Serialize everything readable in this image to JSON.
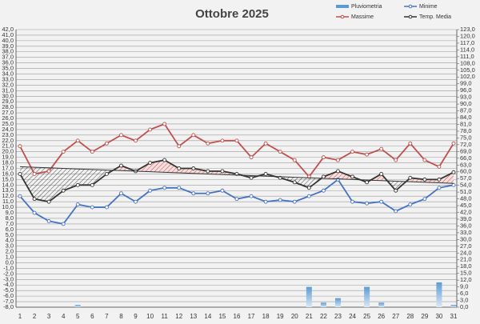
{
  "chart_data": {
    "type": "line",
    "title": "Ottobre 2025",
    "categories": [
      "1",
      "2",
      "3",
      "4",
      "5",
      "6",
      "7",
      "8",
      "9",
      "10",
      "11",
      "12",
      "13",
      "14",
      "15",
      "16",
      "17",
      "18",
      "19",
      "20",
      "21",
      "22",
      "23",
      "24",
      "25",
      "26",
      "27",
      "28",
      "29",
      "30",
      "31"
    ],
    "series": [
      {
        "name": "Pluviometria",
        "type": "bar",
        "axis": "y2",
        "color": "#5b9bd5",
        "values": [
          0,
          0,
          0,
          0,
          1,
          0,
          0,
          0,
          0,
          0,
          0,
          0,
          0,
          0,
          0,
          0,
          0,
          0,
          0,
          0,
          9,
          2,
          4,
          0,
          9,
          2,
          0,
          0,
          0,
          11,
          1
        ]
      },
      {
        "name": "Minime",
        "color": "#4472c4",
        "values": [
          12,
          9,
          7.5,
          7,
          10.5,
          10,
          10,
          12.5,
          11,
          13,
          13.5,
          13.5,
          12.5,
          12.5,
          13,
          11.5,
          12,
          11,
          11.3,
          11,
          12,
          13,
          15,
          11,
          10.7,
          11,
          9.3,
          10.5,
          11.5,
          13.5,
          14
        ]
      },
      {
        "name": "Massime",
        "color": "#c0504d",
        "values": [
          21,
          16,
          16.5,
          20,
          22,
          20,
          21.5,
          23,
          22,
          24,
          25,
          21,
          23,
          21.5,
          22,
          22,
          19,
          21.5,
          20,
          18.5,
          15.5,
          19,
          18.5,
          20,
          19.5,
          20.5,
          18.5,
          21.5,
          18.5,
          17.3,
          21.5
        ]
      },
      {
        "name": "Temp. Media",
        "color": "#333333",
        "values": [
          16,
          11.5,
          11,
          13,
          14,
          14,
          16,
          17.5,
          16.5,
          18,
          18.5,
          17,
          17,
          16.5,
          16.5,
          16,
          15.3,
          16,
          15.3,
          14.5,
          13.5,
          15.5,
          16.5,
          15.5,
          14.5,
          16,
          13,
          15.3,
          15,
          15,
          16.3
        ]
      },
      {
        "color": "#333333",
        "values": [
          17.3,
          17.2,
          17.1,
          17,
          16.9,
          16.8,
          16.7,
          16.6,
          16.5,
          16.4,
          16.3,
          16.2,
          16.1,
          16,
          15.9,
          15.8,
          15.7,
          15.6,
          15.5,
          15.4,
          15.3,
          15.2,
          15.1,
          15,
          14.9,
          14.8,
          14.7,
          14.6,
          14.5,
          14.4,
          14.3
        ]
      }
    ],
    "ylim": [
      -8,
      42
    ],
    "yticks": [
      {
        "value": 42,
        "label": "42,0"
      },
      {
        "value": 41,
        "label": "41,0"
      },
      {
        "value": 40,
        "label": "40,0"
      },
      {
        "value": 39,
        "label": "39,0"
      },
      {
        "value": 38,
        "label": "38,0"
      },
      {
        "value": 37,
        "label": "37,0"
      },
      {
        "value": 36,
        "label": "36,0"
      },
      {
        "value": 35,
        "label": "35,0"
      },
      {
        "value": 34,
        "label": "34,0"
      },
      {
        "value": 33,
        "label": "33,0"
      },
      {
        "value": 32,
        "label": "32,0"
      },
      {
        "value": 31,
        "label": "31,0"
      },
      {
        "value": 30,
        "label": "30,0"
      },
      {
        "value": 29,
        "label": "29,0"
      },
      {
        "value": 28,
        "label": "28,0"
      },
      {
        "value": 27,
        "label": "27,0"
      },
      {
        "value": 26,
        "label": "26,0"
      },
      {
        "value": 25,
        "label": "25,0"
      },
      {
        "value": 24,
        "label": "24,0"
      },
      {
        "value": 23,
        "label": "23,0"
      },
      {
        "value": 22,
        "label": "22,0"
      },
      {
        "value": 21,
        "label": "21,0"
      },
      {
        "value": 20,
        "label": "20,0"
      },
      {
        "value": 19,
        "label": "19,0"
      },
      {
        "value": 18,
        "label": "18,0"
      },
      {
        "value": 17,
        "label": "17,0"
      },
      {
        "value": 16,
        "label": "16,0"
      },
      {
        "value": 15,
        "label": "15,0"
      },
      {
        "value": 14,
        "label": "14,0"
      },
      {
        "value": 13,
        "label": "13,0"
      },
      {
        "value": 12,
        "label": "12,0"
      },
      {
        "value": 11,
        "label": "11,0"
      },
      {
        "value": 10,
        "label": "10,0"
      },
      {
        "value": 9,
        "label": "9,0"
      },
      {
        "value": 8,
        "label": "8,0"
      },
      {
        "value": 7,
        "label": "7,0"
      },
      {
        "value": 6,
        "label": "6,0"
      },
      {
        "value": 5,
        "label": "5,0"
      },
      {
        "value": 4,
        "label": "4,0"
      },
      {
        "value": 3,
        "label": "3,0"
      },
      {
        "value": 2,
        "label": "2,0"
      },
      {
        "value": 1,
        "label": "1,0"
      },
      {
        "value": 0,
        "label": "0,0"
      },
      {
        "value": -1,
        "label": "-1,0"
      },
      {
        "value": -2,
        "label": "-2,0"
      },
      {
        "value": -3,
        "label": "-3,0"
      },
      {
        "value": -4,
        "label": "-4,0"
      },
      {
        "value": -5,
        "label": "-5,0"
      },
      {
        "value": -6,
        "label": "-6,0"
      },
      {
        "value": -7,
        "label": "-7,0"
      },
      {
        "value": -8,
        "label": "-8,0"
      }
    ],
    "y2lim": [
      0,
      123
    ],
    "y2ticks": [
      {
        "value": 123,
        "label": "123,0"
      },
      {
        "value": 120,
        "label": "120,0"
      },
      {
        "value": 117,
        "label": "117,0"
      },
      {
        "value": 114,
        "label": "114,0"
      },
      {
        "value": 111,
        "label": "111,0"
      },
      {
        "value": 108,
        "label": "108,0"
      },
      {
        "value": 105,
        "label": "105,0"
      },
      {
        "value": 102,
        "label": "102,0"
      },
      {
        "value": 99,
        "label": "99,0"
      },
      {
        "value": 96,
        "label": "96,0"
      },
      {
        "value": 93,
        "label": "93,0"
      },
      {
        "value": 90,
        "label": "90,0"
      },
      {
        "value": 87,
        "label": "87,0"
      },
      {
        "value": 84,
        "label": "84,0"
      },
      {
        "value": 81,
        "label": "81,0"
      },
      {
        "value": 78,
        "label": "78,0"
      },
      {
        "value": 75,
        "label": "75,0"
      },
      {
        "value": 72,
        "label": "72,0"
      },
      {
        "value": 69,
        "label": "69,0"
      },
      {
        "value": 66,
        "label": "66,0"
      },
      {
        "value": 63,
        "label": "63,0"
      },
      {
        "value": 60,
        "label": "60,0"
      },
      {
        "value": 57,
        "label": "57,0"
      },
      {
        "value": 54,
        "label": "54,0"
      },
      {
        "value": 51,
        "label": "51,0"
      },
      {
        "value": 48,
        "label": "48,0"
      },
      {
        "value": 45,
        "label": "45,0"
      },
      {
        "value": 42,
        "label": "42,0"
      },
      {
        "value": 39,
        "label": "39,0"
      },
      {
        "value": 36,
        "label": "36,0"
      },
      {
        "value": 33,
        "label": "33,0"
      },
      {
        "value": 30,
        "label": "30,0"
      },
      {
        "value": 27,
        "label": "27,0"
      },
      {
        "value": 24,
        "label": "24,0"
      },
      {
        "value": 21,
        "label": "21,0"
      },
      {
        "value": 18,
        "label": "18,0"
      },
      {
        "value": 15,
        "label": "15,0"
      },
      {
        "value": 12,
        "label": "12,0"
      },
      {
        "value": 9,
        "label": "9,0"
      },
      {
        "value": 6,
        "label": "6,0"
      },
      {
        "value": 3,
        "label": "3,0"
      },
      {
        "value": 0,
        "label": "0,0"
      }
    ],
    "grid": true
  }
}
